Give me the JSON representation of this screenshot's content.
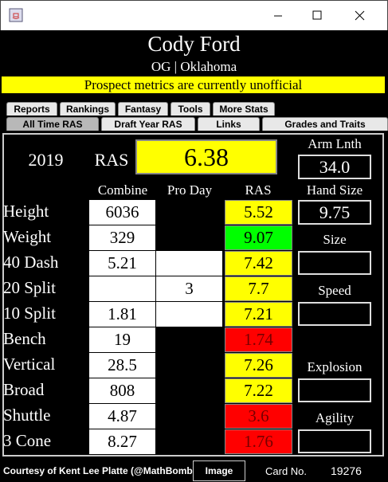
{
  "header": {
    "title": "Cody Ford",
    "subtitle": "OG | Oklahoma",
    "banner": "Prospect metrics are currently unofficial"
  },
  "tabs": {
    "row1": [
      "Reports",
      "Rankings",
      "Fantasy",
      "Tools",
      "More Stats"
    ],
    "row2": [
      "All Time RAS",
      "Draft Year RAS",
      "Links",
      "Grades and Traits"
    ],
    "selected": "All Time RAS"
  },
  "summary": {
    "year": "2019",
    "ras_label": "RAS",
    "ras_value": "6.38",
    "arm_label": "Arm Lnth",
    "arm_length": "34.0"
  },
  "columns": [
    "Combine",
    "Pro Day",
    "RAS",
    "Hand Size"
  ],
  "rows": [
    {
      "label": "Height",
      "combine": "6036",
      "pro_day": null,
      "pro_day_color": "#000000",
      "ras": "5.52",
      "ras_color": "#ffff00"
    },
    {
      "label": "Weight",
      "combine": "329",
      "pro_day": null,
      "pro_day_color": "#000000",
      "ras": "9.07",
      "ras_color": "#00ff00"
    },
    {
      "label": "40 Dash",
      "combine": "5.21",
      "pro_day": null,
      "pro_day_color": "#ffffff",
      "ras": "7.42",
      "ras_color": "#ffff00"
    },
    {
      "label": "20 Split",
      "combine": null,
      "pro_day": "3",
      "pro_day_color": "#ffffff",
      "ras": "7.7",
      "ras_color": "#ffff00"
    },
    {
      "label": "10 Split",
      "combine": "1.81",
      "pro_day": null,
      "pro_day_color": "#ffffff",
      "ras": "7.21",
      "ras_color": "#ffff00"
    },
    {
      "label": "Bench",
      "combine": "19",
      "pro_day": null,
      "pro_day_color": "#000000",
      "ras": "1.74",
      "ras_color": "#ff0000"
    },
    {
      "label": "Vertical",
      "combine": "28.5",
      "pro_day": null,
      "pro_day_color": "#000000",
      "ras": "7.26",
      "ras_color": "#ffff00"
    },
    {
      "label": "Broad",
      "combine": "808",
      "pro_day": null,
      "pro_day_color": "#000000",
      "ras": "7.22",
      "ras_color": "#ffff00"
    },
    {
      "label": "Shuttle",
      "combine": "4.87",
      "pro_day": null,
      "pro_day_color": "#000000",
      "ras": "3.6",
      "ras_color": "#ff0000"
    },
    {
      "label": "3 Cone",
      "combine": "8.27",
      "pro_day": null,
      "pro_day_color": "#000000",
      "ras": "1.76",
      "ras_color": "#ff0000"
    }
  ],
  "side": {
    "hand_size": "9.75",
    "groups": [
      "Size",
      "Speed",
      "Explosion",
      "Agility"
    ]
  },
  "footer": {
    "credit": "Courtesy of Kent Lee Platte (@MathBomb)",
    "button": "Image",
    "card_label": "Card No.",
    "card_no": "19276"
  }
}
